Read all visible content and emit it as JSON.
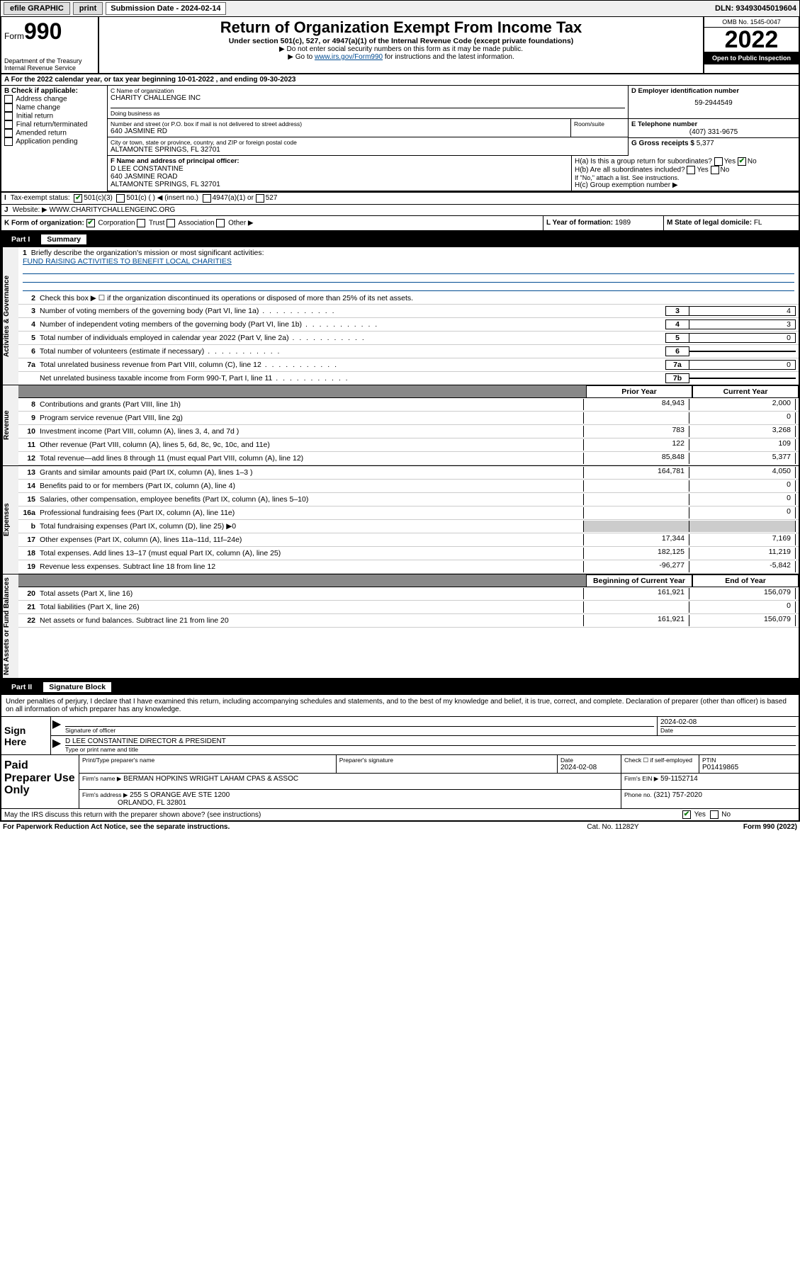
{
  "topbar": {
    "efile": "efile GRAPHIC",
    "print": "print",
    "subdate_lbl": "Submission Date - 2024-02-14",
    "dln": "DLN: 93493045019604"
  },
  "header": {
    "form_word": "Form",
    "form_num": "990",
    "dept": "Department of the Treasury",
    "irs": "Internal Revenue Service",
    "title": "Return of Organization Exempt From Income Tax",
    "sub1": "Under section 501(c), 527, or 4947(a)(1) of the Internal Revenue Code (except private foundations)",
    "sub2": "▶ Do not enter social security numbers on this form as it may be made public.",
    "sub3_pre": "▶ Go to ",
    "sub3_link": "www.irs.gov/Form990",
    "sub3_post": " for instructions and the latest information.",
    "omb": "OMB No. 1545-0047",
    "year": "2022",
    "open": "Open to Public Inspection"
  },
  "rowA": "A For the 2022 calendar year, or tax year beginning 10-01-2022   , and ending 09-30-2023",
  "colB": {
    "hdr": "B Check if applicable:",
    "items": [
      "Address change",
      "Name change",
      "Initial return",
      "Final return/terminated",
      "Amended return",
      "Application pending"
    ]
  },
  "colC": {
    "name_lbl": "C Name of organization",
    "name": "CHARITY CHALLENGE INC",
    "dba_lbl": "Doing business as",
    "street_lbl": "Number and street (or P.O. box if mail is not delivered to street address)",
    "street": "640 JASMINE RD",
    "room_lbl": "Room/suite",
    "city_lbl": "City or town, state or province, country, and ZIP or foreign postal code",
    "city": "ALTAMONTE SPRINGS, FL  32701"
  },
  "colD": {
    "ein_lbl": "D Employer identification number",
    "ein": "59-2944549",
    "tel_lbl": "E Telephone number",
    "tel": "(407) 331-9675",
    "gross_lbl": "G Gross receipts $",
    "gross": "5,377"
  },
  "rowF": {
    "lbl": "F Name and address of principal officer:",
    "name": "D LEE CONSTANTINE",
    "addr1": "640 JASMINE ROAD",
    "addr2": "ALTAMONTE SPRINGS, FL  32701"
  },
  "rowH": {
    "ha": "H(a)  Is this a group return for subordinates?",
    "hb": "H(b)  Are all subordinates included?",
    "hb_note": "If \"No,\" attach a list. See instructions.",
    "hc": "H(c)  Group exemption number ▶",
    "yes": "Yes",
    "no": "No"
  },
  "rowI": {
    "lbl": "Tax-exempt status:",
    "c3": "501(c)(3)",
    "c": "501(c) (   ) ◀ (insert no.)",
    "a1": "4947(a)(1) or",
    "s527": "527"
  },
  "rowJ": {
    "lbl": "Website: ▶",
    "val": "WWW.CHARITYCHALLENGEINC.ORG"
  },
  "rowK": {
    "lbl": "K Form of organization:",
    "corp": "Corporation",
    "trust": "Trust",
    "assoc": "Association",
    "other": "Other ▶"
  },
  "rowL": {
    "lbl": "L Year of formation:",
    "val": "1989"
  },
  "rowM": {
    "lbl": "M State of legal domicile:",
    "val": "FL"
  },
  "part1": {
    "hdr_part": "Part I",
    "hdr_title": "Summary",
    "side_ag": "Activities & Governance",
    "side_rev": "Revenue",
    "side_exp": "Expenses",
    "side_net": "Net Assets or Fund Balances",
    "l1_lbl": "Briefly describe the organization's mission or most significant activities:",
    "l1_val": "FUND RAISING ACTIVITIES TO BENEFIT LOCAL CHARITIES",
    "l2": "Check this box ▶ ☐  if the organization discontinued its operations or disposed of more than 25% of its net assets.",
    "lines_ag": [
      {
        "n": "3",
        "t": "Number of voting members of the governing body (Part VI, line 1a)",
        "c": "3",
        "v": "4"
      },
      {
        "n": "4",
        "t": "Number of independent voting members of the governing body (Part VI, line 1b)",
        "c": "4",
        "v": "3"
      },
      {
        "n": "5",
        "t": "Total number of individuals employed in calendar year 2022 (Part V, line 2a)",
        "c": "5",
        "v": "0"
      },
      {
        "n": "6",
        "t": "Total number of volunteers (estimate if necessary)",
        "c": "6",
        "v": ""
      },
      {
        "n": "7a",
        "t": "Total unrelated business revenue from Part VIII, column (C), line 12",
        "c": "7a",
        "v": "0"
      },
      {
        "n": "",
        "t": "Net unrelated business taxable income from Form 990-T, Part I, line 11",
        "c": "7b",
        "v": ""
      }
    ],
    "col_prior": "Prior Year",
    "col_curr": "Current Year",
    "lines_rev": [
      {
        "n": "8",
        "t": "Contributions and grants (Part VIII, line 1h)",
        "p": "84,943",
        "c": "2,000"
      },
      {
        "n": "9",
        "t": "Program service revenue (Part VIII, line 2g)",
        "p": "",
        "c": "0"
      },
      {
        "n": "10",
        "t": "Investment income (Part VIII, column (A), lines 3, 4, and 7d )",
        "p": "783",
        "c": "3,268"
      },
      {
        "n": "11",
        "t": "Other revenue (Part VIII, column (A), lines 5, 6d, 8c, 9c, 10c, and 11e)",
        "p": "122",
        "c": "109"
      },
      {
        "n": "12",
        "t": "Total revenue—add lines 8 through 11 (must equal Part VIII, column (A), line 12)",
        "p": "85,848",
        "c": "5,377"
      }
    ],
    "lines_exp": [
      {
        "n": "13",
        "t": "Grants and similar amounts paid (Part IX, column (A), lines 1–3 )",
        "p": "164,781",
        "c": "4,050"
      },
      {
        "n": "14",
        "t": "Benefits paid to or for members (Part IX, column (A), line 4)",
        "p": "",
        "c": "0"
      },
      {
        "n": "15",
        "t": "Salaries, other compensation, employee benefits (Part IX, column (A), lines 5–10)",
        "p": "",
        "c": "0"
      },
      {
        "n": "16a",
        "t": "Professional fundraising fees (Part IX, column (A), line 11e)",
        "p": "",
        "c": "0"
      },
      {
        "n": "b",
        "t": "Total fundraising expenses (Part IX, column (D), line 25) ▶0",
        "p": "shade",
        "c": "shade"
      },
      {
        "n": "17",
        "t": "Other expenses (Part IX, column (A), lines 11a–11d, 11f–24e)",
        "p": "17,344",
        "c": "7,169"
      },
      {
        "n": "18",
        "t": "Total expenses. Add lines 13–17 (must equal Part IX, column (A), line 25)",
        "p": "182,125",
        "c": "11,219"
      },
      {
        "n": "19",
        "t": "Revenue less expenses. Subtract line 18 from line 12",
        "p": "-96,277",
        "c": "-5,842"
      }
    ],
    "col_beg": "Beginning of Current Year",
    "col_end": "End of Year",
    "lines_net": [
      {
        "n": "20",
        "t": "Total assets (Part X, line 16)",
        "p": "161,921",
        "c": "156,079"
      },
      {
        "n": "21",
        "t": "Total liabilities (Part X, line 26)",
        "p": "",
        "c": "0"
      },
      {
        "n": "22",
        "t": "Net assets or fund balances. Subtract line 21 from line 20",
        "p": "161,921",
        "c": "156,079"
      }
    ]
  },
  "part2": {
    "hdr_part": "Part II",
    "hdr_title": "Signature Block",
    "declare": "Under penalties of perjury, I declare that I have examined this return, including accompanying schedules and statements, and to the best of my knowledge and belief, it is true, correct, and complete. Declaration of preparer (other than officer) is based on all information of which preparer has any knowledge.",
    "sign_here": "Sign Here",
    "sig_officer_lbl": "Signature of officer",
    "sig_date": "2024-02-08",
    "date_lbl": "Date",
    "officer_name": "D LEE CONSTANTINE  DIRECTOR & PRESIDENT",
    "officer_name_lbl": "Type or print name and title",
    "paid": "Paid Preparer Use Only",
    "prep_name_lbl": "Print/Type preparer's name",
    "prep_sig_lbl": "Preparer's signature",
    "prep_date_lbl": "Date",
    "prep_date": "2024-02-08",
    "chk_self": "Check ☐ if self-employed",
    "ptin_lbl": "PTIN",
    "ptin": "P01419865",
    "firm_name_lbl": "Firm's name     ▶",
    "firm_name": "BERMAN HOPKINS WRIGHT LAHAM CPAS & ASSOC",
    "firm_ein_lbl": "Firm's EIN ▶",
    "firm_ein": "59-1152714",
    "firm_addr_lbl": "Firm's address ▶",
    "firm_addr1": "255 S ORANGE AVE STE 1200",
    "firm_addr2": "ORLANDO, FL  32801",
    "phone_lbl": "Phone no.",
    "phone": "(321) 757-2020",
    "discuss": "May the IRS discuss this return with the preparer shown above? (see instructions)",
    "yes": "Yes",
    "no": "No"
  },
  "footer": {
    "left": "For Paperwork Reduction Act Notice, see the separate instructions.",
    "center": "Cat. No. 11282Y",
    "right": "Form 990 (2022)"
  }
}
